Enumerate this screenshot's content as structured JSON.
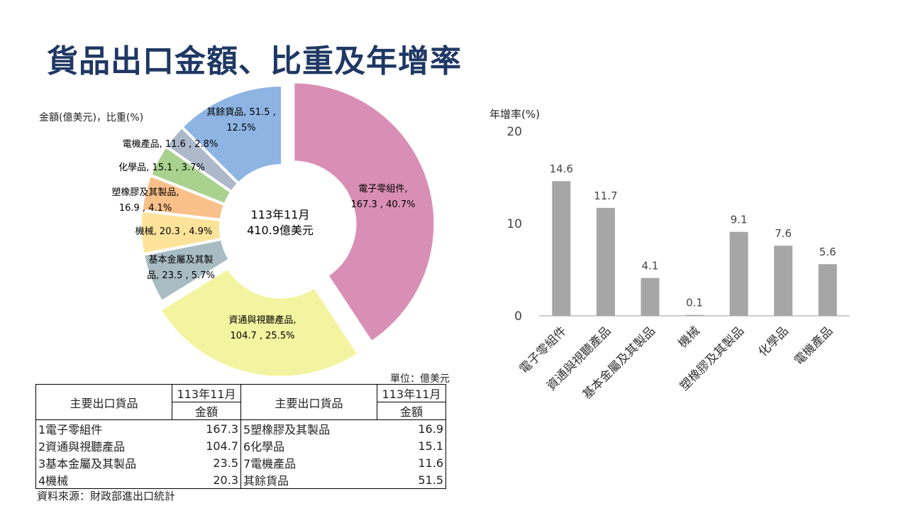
{
  "title": "貨品出口金額、比重及年增率",
  "donut_unit": "金額(億美元)，比重(%)",
  "center_line1": "113年11月",
  "center_line2": "410.9億美元",
  "bar_axis_label": "年增率(%)",
  "table_unit": "單位：億美元",
  "table": {
    "header_goods": "主要出口貨品",
    "header_month": "113年11月",
    "header_amount": "金額",
    "rows": [
      {
        "left_name": "1電子零組件",
        "left_value": "167.3",
        "right_name": "5塑橡膠及其製品",
        "right_value": "16.9"
      },
      {
        "left_name": "2資通與視聽產品",
        "left_value": "104.7",
        "right_name": "6化學品",
        "right_value": "15.1"
      },
      {
        "left_name": "3基本金屬及其製品",
        "left_value": "23.5",
        "right_name": "7電機產品",
        "right_value": "11.6"
      },
      {
        "left_name": "4機械",
        "left_value": "20.3",
        "right_name": "其餘貨品",
        "right_value": "51.5"
      }
    ]
  },
  "source": "資料來源：財政部進出口統計",
  "chart_data": [
    {
      "type": "pie",
      "subtype": "donut",
      "slices": [
        {
          "name": "電子零組件",
          "value": 167.3,
          "share": 40.7,
          "label_lines": [
            "電子零組件,",
            "167.3 , 40.7%"
          ],
          "color": "#d98fb5"
        },
        {
          "name": "資通與視聽產品",
          "value": 104.7,
          "share": 25.5,
          "label_lines": [
            "資通與視聽產品,",
            "104.7 , 25.5%"
          ],
          "color": "#f2f4a0"
        },
        {
          "name": "基本金屬及其製品",
          "value": 23.5,
          "share": 5.7,
          "label_lines": [
            "基本金屬及其製",
            "品, 23.5 , 5.7%"
          ],
          "color": "#a9bcc4"
        },
        {
          "name": "機械",
          "value": 20.3,
          "share": 4.9,
          "label_lines": [
            "機械, 20.3 , 4.9%"
          ],
          "color": "#fde39a"
        },
        {
          "name": "塑橡膠及其製品",
          "value": 16.9,
          "share": 4.1,
          "label_lines": [
            "塑橡膠及其製品,",
            "16.9 , 4.1%"
          ],
          "color": "#f9c089"
        },
        {
          "name": "化學品",
          "value": 15.1,
          "share": 3.7,
          "label_lines": [
            "化學品, 15.1 , 3.7%"
          ],
          "color": "#a9d18e"
        },
        {
          "name": "電機產品",
          "value": 11.6,
          "share": 2.8,
          "label_lines": [
            "電機產品, 11.6 , 2.8%"
          ],
          "color": "#adb9ca"
        },
        {
          "name": "其餘貨品",
          "value": 51.5,
          "share": 12.5,
          "label_lines": [
            "其餘貨品, 51.5 ,",
            "12.5%"
          ],
          "color": "#8db4e2"
        }
      ]
    },
    {
      "type": "bar",
      "categories": [
        "電子零組件",
        "資通與視聽產品",
        "基本金屬及其製品",
        "機械",
        "塑橡膠及其製品",
        "化學品",
        "電機產品"
      ],
      "values": [
        14.6,
        11.7,
        4.1,
        0.1,
        9.1,
        7.6,
        5.6
      ],
      "value_labels": [
        "14.6",
        "11.7",
        "4.1",
        "0.1",
        "9.1",
        "7.6",
        "5.6"
      ],
      "ylim": [
        0,
        20
      ],
      "yticks": [
        "0",
        "10",
        "20"
      ],
      "bar_color": "#a6a6a6",
      "ylabel": "年增率(%)"
    }
  ]
}
